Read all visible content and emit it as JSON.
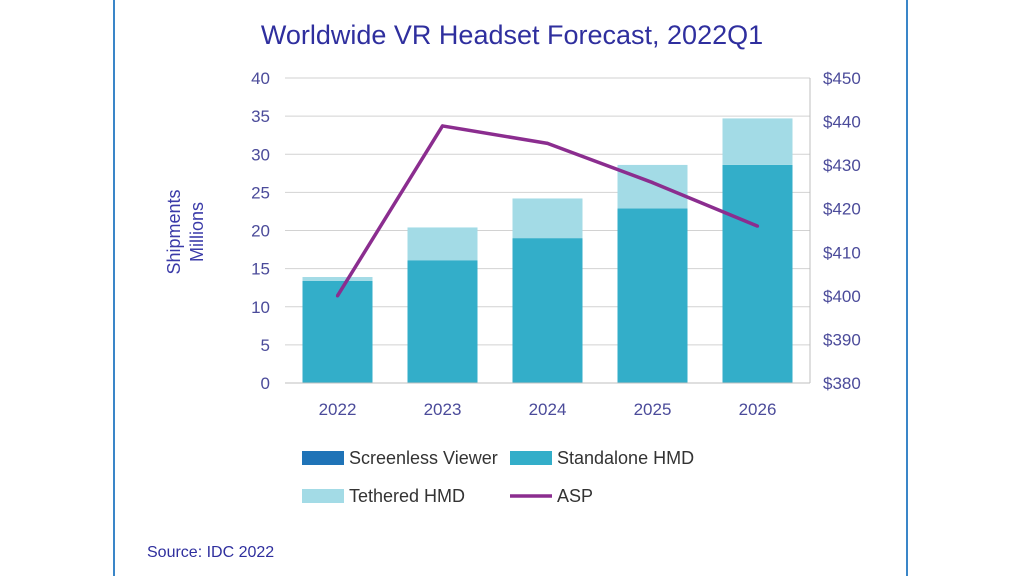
{
  "chart_data": {
    "type": "bar",
    "stacked": true,
    "title": "Worldwide VR Headset Forecast, 2022Q1",
    "ylabel": [
      "Shipments",
      "Millions"
    ],
    "xlabel": "",
    "categories": [
      "2022",
      "2023",
      "2024",
      "2025",
      "2026"
    ],
    "ylim": [
      0,
      40
    ],
    "yticks": [
      0,
      5,
      10,
      15,
      20,
      25,
      30,
      35,
      40
    ],
    "y2lim": [
      380,
      450
    ],
    "y2ticks": [
      "$380",
      "$390",
      "$400",
      "$410",
      "$420",
      "$430",
      "$440",
      "$450"
    ],
    "y2tick_values": [
      380,
      390,
      400,
      410,
      420,
      430,
      440,
      450
    ],
    "series": [
      {
        "name": "Screenless Viewer",
        "kind": "bar",
        "axis": "left",
        "color": "#1f73b7",
        "values": [
          0,
          0,
          0,
          0,
          0
        ]
      },
      {
        "name": "Standalone HMD",
        "kind": "bar",
        "axis": "left",
        "color": "#33aec9",
        "values": [
          13.4,
          16.1,
          19.0,
          22.9,
          28.6
        ]
      },
      {
        "name": "Tethered HMD",
        "kind": "bar",
        "axis": "left",
        "color": "#a3dbe6",
        "values": [
          0.5,
          4.3,
          5.2,
          5.7,
          6.1
        ]
      },
      {
        "name": "ASP",
        "kind": "line",
        "axis": "right",
        "color": "#8b2d8f",
        "values": [
          400,
          439,
          435,
          426,
          416
        ]
      }
    ],
    "legend": [
      "Screenless Viewer",
      "Standalone HMD",
      "Tethered HMD",
      "ASP"
    ],
    "source": "Source: IDC 2022"
  }
}
